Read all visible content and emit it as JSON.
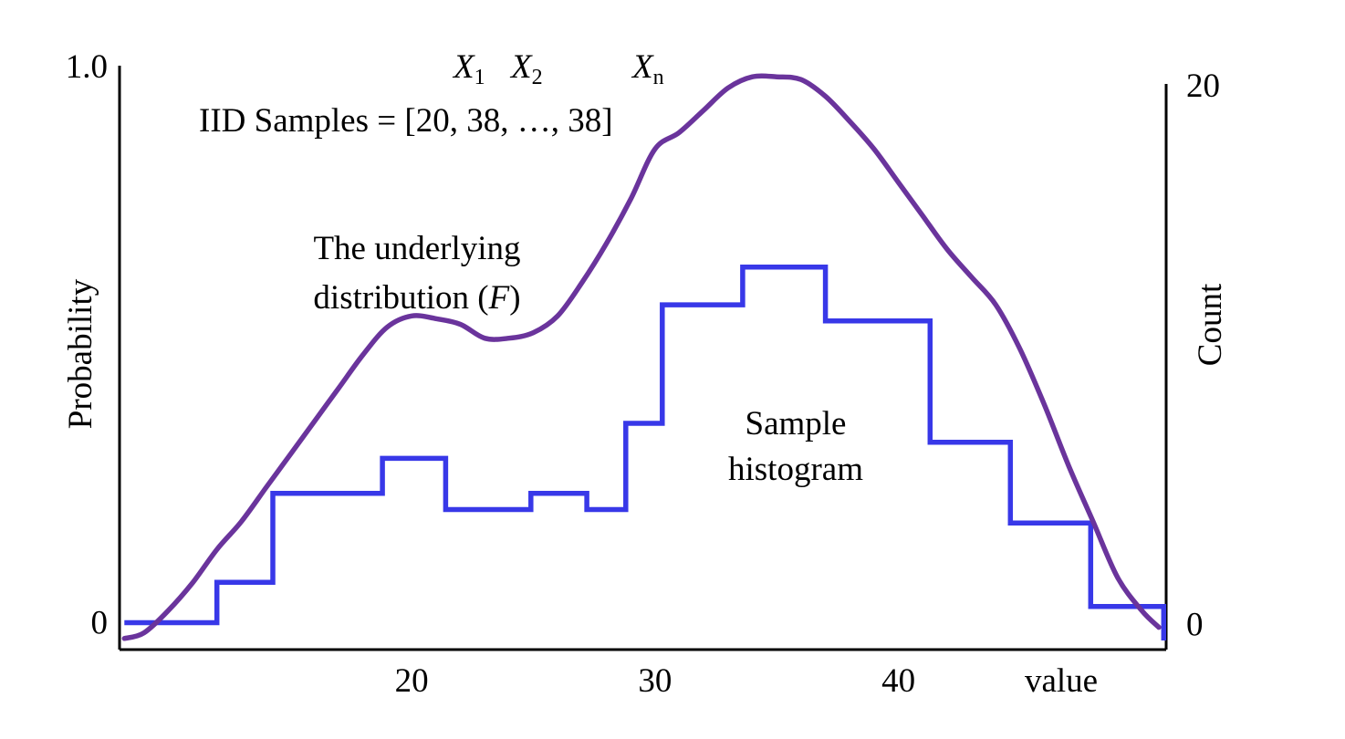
{
  "chart_data": {
    "type": "line",
    "title": "",
    "ylabel_left": "Probability",
    "ylabel_right": "Count",
    "xlabel": "value",
    "x_ticks": [
      {
        "value": 20,
        "label": "20"
      },
      {
        "value": 30,
        "label": "30"
      },
      {
        "value": 40,
        "label": "40"
      }
    ],
    "left_ticks": [
      {
        "value": 0,
        "label": "0"
      },
      {
        "value": 1,
        "label": "1.0"
      }
    ],
    "right_ticks": [
      {
        "value": 0,
        "label": "0"
      },
      {
        "value": 20,
        "label": "20"
      }
    ],
    "xlim": [
      8,
      51
    ],
    "ylim_left": [
      -0.05,
      1.0
    ],
    "ylim_right": [
      -1,
      20
    ],
    "annotations": {
      "samples": {
        "prefix": "IID Samples = ",
        "values_text": "[20, 38, …, 38]",
        "variables": [
          {
            "base": "X",
            "sub": "1"
          },
          {
            "base": "X",
            "sub": "2"
          },
          {
            "base": "X",
            "sub": "n"
          }
        ]
      },
      "distribution_label": {
        "line1": "The underlying",
        "line2_prefix": "distribution (",
        "line2_var": "F",
        "line2_suffix": ")"
      },
      "histogram_label": {
        "line1": "Sample",
        "line2": "histogram"
      }
    },
    "series": [
      {
        "kind": "curve",
        "color": "#6a349c",
        "x": [
          8.2,
          9,
          10,
          11,
          12,
          13,
          14,
          15,
          16,
          17,
          18,
          19,
          20,
          21,
          22,
          23,
          24,
          25,
          26,
          27,
          28,
          29,
          30,
          31,
          32,
          33,
          34,
          35,
          36,
          37,
          38,
          39,
          40,
          41,
          42,
          43,
          44,
          45,
          46,
          47,
          48,
          49,
          50,
          50.7
        ],
        "y": [
          -0.03,
          -0.02,
          0.02,
          0.07,
          0.13,
          0.18,
          0.24,
          0.3,
          0.36,
          0.42,
          0.48,
          0.53,
          0.55,
          0.545,
          0.535,
          0.51,
          0.51,
          0.52,
          0.55,
          0.61,
          0.68,
          0.76,
          0.85,
          0.88,
          0.92,
          0.96,
          0.98,
          0.98,
          0.975,
          0.945,
          0.9,
          0.85,
          0.79,
          0.73,
          0.67,
          0.62,
          0.57,
          0.49,
          0.39,
          0.28,
          0.18,
          0.08,
          0.02,
          -0.01
        ]
      },
      {
        "kind": "histogram",
        "color": "#3838e8",
        "bins": [
          {
            "x0": 8.2,
            "x1": 12,
            "count": 0
          },
          {
            "x0": 12,
            "x1": 14.3,
            "count": 1.5
          },
          {
            "x0": 14.3,
            "x1": 18.8,
            "count": 4.8
          },
          {
            "x0": 18.8,
            "x1": 21.4,
            "count": 6.1
          },
          {
            "x0": 21.4,
            "x1": 24.9,
            "count": 4.2
          },
          {
            "x0": 24.9,
            "x1": 27.2,
            "count": 4.8
          },
          {
            "x0": 27.2,
            "x1": 28.8,
            "count": 4.2
          },
          {
            "x0": 28.8,
            "x1": 30.3,
            "count": 7.4
          },
          {
            "x0": 30.3,
            "x1": 33.6,
            "count": 11.8
          },
          {
            "x0": 33.6,
            "x1": 37.0,
            "count": 13.2
          },
          {
            "x0": 37.0,
            "x1": 41.3,
            "count": 11.2
          },
          {
            "x0": 41.3,
            "x1": 44.6,
            "count": 6.7
          },
          {
            "x0": 44.6,
            "x1": 47.9,
            "count": 3.7
          },
          {
            "x0": 47.9,
            "x1": 50.9,
            "count": 0.6
          }
        ]
      }
    ]
  }
}
